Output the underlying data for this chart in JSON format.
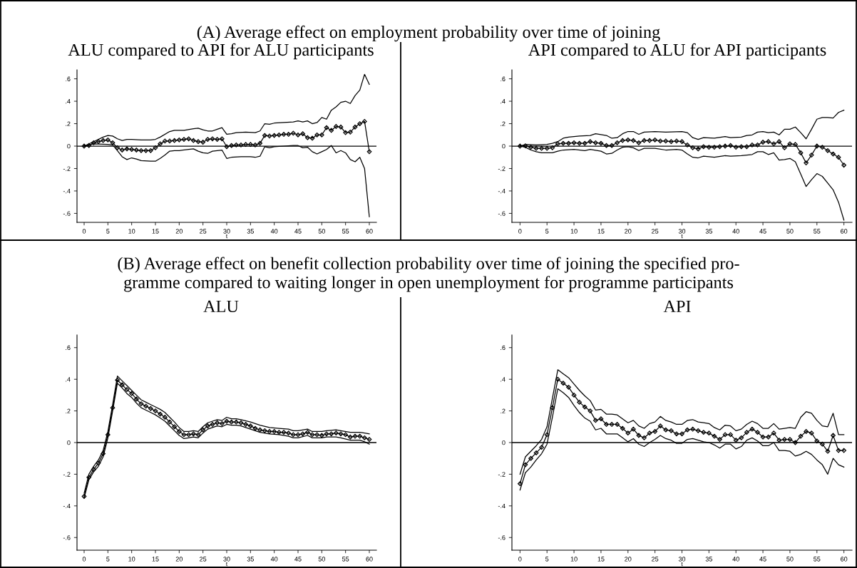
{
  "chart_data": [
    {
      "type": "line",
      "title": "ALU compared to API for ALU participants",
      "annotations": [
        "(A) Average effect on employment probability over time of joining"
      ],
      "xlabel": "t",
      "xlim": [
        -1.5,
        61.5
      ],
      "xticks": [
        0,
        5,
        10,
        15,
        20,
        25,
        30,
        35,
        40,
        45,
        50,
        55,
        60
      ],
      "ylim": [
        -0.68,
        0.68
      ],
      "yticks": [
        {
          "value": 0.6,
          "label": ".6"
        },
        {
          "value": 0.4,
          "label": ".4"
        },
        {
          "value": 0.2,
          "label": ".2"
        },
        0,
        {
          "value": -0.2,
          "label": "-.2"
        },
        {
          "value": -0.4,
          "label": "-.4"
        },
        {
          "value": -0.6,
          "label": "-.6"
        }
      ],
      "grid": false,
      "ref_lines": [
        {
          "axis": "y",
          "value": 0,
          "color": "#000000"
        }
      ],
      "series": [
        {
          "color": "#000000",
          "marker": "diamond",
          "x": [
            0,
            1,
            2,
            3,
            4,
            5,
            6,
            7,
            8,
            9,
            10,
            11,
            12,
            13,
            14,
            15,
            16,
            17,
            18,
            19,
            20,
            21,
            22,
            23,
            24,
            25,
            26,
            27,
            28,
            29,
            30,
            31,
            32,
            33,
            34,
            35,
            36,
            37,
            38,
            39,
            40,
            41,
            42,
            43,
            44,
            45,
            46,
            47,
            48,
            49,
            50,
            51,
            52,
            53,
            54,
            55,
            56,
            57,
            58,
            59,
            60
          ],
          "values": [
            0,
            0.005,
            0.03,
            0.04,
            0.05,
            0.055,
            0.03,
            -0.015,
            -0.035,
            -0.025,
            -0.03,
            -0.035,
            -0.04,
            -0.04,
            -0.04,
            -0.015,
            0.02,
            0.045,
            0.045,
            0.05,
            0.055,
            0.06,
            0.065,
            0.05,
            0.04,
            0.035,
            0.06,
            0.065,
            0.06,
            0.065,
            -0.005,
            0.005,
            0.01,
            0.01,
            0.015,
            0.015,
            0.01,
            0.025,
            0.095,
            0.09,
            0.095,
            0.1,
            0.105,
            0.105,
            0.115,
            0.1,
            0.11,
            0.075,
            0.07,
            0.1,
            0.1,
            0.165,
            0.14,
            0.175,
            0.17,
            0.12,
            0.125,
            0.17,
            0.2,
            0.22,
            -0.05
          ]
        },
        {
          "color": "#000000",
          "x": [
            0,
            2,
            4,
            5,
            6,
            7,
            8,
            9,
            10,
            12,
            14,
            15,
            16,
            18,
            19,
            21,
            23,
            24,
            25,
            26,
            27,
            28,
            29,
            30,
            31,
            32,
            34,
            36,
            37,
            38,
            39,
            40,
            42,
            44,
            45,
            46,
            47,
            48,
            49,
            50,
            51,
            52,
            53,
            54,
            55,
            56,
            57,
            58,
            59,
            60
          ],
          "values": [
            0,
            0.04,
            0.08,
            0.095,
            0.09,
            0.065,
            0.05,
            0.06,
            0.06,
            0.055,
            0.055,
            0.06,
            0.08,
            0.13,
            0.14,
            0.14,
            0.155,
            0.16,
            0.145,
            0.135,
            0.135,
            0.15,
            0.165,
            0.105,
            0.11,
            0.12,
            0.125,
            0.12,
            0.135,
            0.2,
            0.195,
            0.205,
            0.21,
            0.215,
            0.225,
            0.215,
            0.225,
            0.2,
            0.21,
            0.255,
            0.24,
            0.32,
            0.35,
            0.39,
            0.4,
            0.38,
            0.45,
            0.5,
            0.64,
            0.55
          ]
        },
        {
          "color": "#000000",
          "x": [
            0,
            2,
            5,
            6,
            7,
            8,
            9,
            10,
            11,
            12,
            14,
            15,
            16,
            17,
            18,
            19,
            20,
            22,
            23,
            24,
            25,
            26,
            27,
            28,
            29,
            30,
            31,
            33,
            35,
            36,
            37,
            38,
            39,
            40,
            42,
            44,
            45,
            46,
            47,
            48,
            49,
            50,
            51,
            52,
            53,
            54,
            55,
            56,
            57,
            58,
            59,
            60
          ],
          "values": [
            0,
            0.02,
            0.015,
            0.01,
            -0.04,
            -0.095,
            -0.12,
            -0.105,
            -0.115,
            -0.13,
            -0.135,
            -0.135,
            -0.11,
            -0.08,
            -0.045,
            -0.04,
            -0.04,
            -0.03,
            -0.025,
            -0.045,
            -0.06,
            -0.065,
            -0.045,
            -0.04,
            -0.035,
            -0.11,
            -0.1,
            -0.095,
            -0.095,
            -0.1,
            -0.09,
            -0.005,
            -0.015,
            -0.005,
            0,
            0.005,
            0.005,
            -0.015,
            -0.01,
            -0.05,
            -0.07,
            -0.05,
            -0.03,
            0.005,
            -0.06,
            -0.04,
            -0.06,
            -0.12,
            -0.14,
            -0.1,
            -0.2,
            -0.63
          ]
        }
      ]
    },
    {
      "type": "line",
      "title": "API compared to ALU for API participants",
      "xlabel": "t",
      "xlim": [
        -1.5,
        61.5
      ],
      "xticks": [
        0,
        5,
        10,
        15,
        20,
        25,
        30,
        35,
        40,
        45,
        50,
        55,
        60
      ],
      "ylim": [
        -0.68,
        0.68
      ],
      "yticks": [
        {
          "value": 0.6,
          "label": ".6"
        },
        {
          "value": 0.4,
          "label": ".4"
        },
        {
          "value": 0.2,
          "label": ".2"
        },
        0,
        {
          "value": -0.2,
          "label": "-.2"
        },
        {
          "value": -0.4,
          "label": "-.4"
        },
        {
          "value": -0.6,
          "label": "-.6"
        }
      ],
      "grid": false,
      "ref_lines": [
        {
          "axis": "y",
          "value": 0,
          "color": "#000000"
        }
      ],
      "series": [
        {
          "color": "#000000",
          "marker": "diamond",
          "x": [
            0,
            1,
            2,
            3,
            4,
            5,
            6,
            7,
            8,
            9,
            10,
            11,
            12,
            13,
            14,
            15,
            16,
            17,
            18,
            19,
            20,
            21,
            22,
            23,
            24,
            25,
            26,
            27,
            28,
            29,
            30,
            31,
            32,
            33,
            34,
            35,
            36,
            37,
            38,
            39,
            40,
            41,
            42,
            43,
            44,
            45,
            46,
            47,
            48,
            49,
            50,
            51,
            52,
            53,
            54,
            55,
            56,
            57,
            58,
            59,
            60
          ],
          "values": [
            0,
            0.002,
            -0.01,
            -0.02,
            -0.02,
            -0.02,
            -0.015,
            0.02,
            0.025,
            0.025,
            0.03,
            0.025,
            0.025,
            0.04,
            0.03,
            0.025,
            0.005,
            0.005,
            0.03,
            0.05,
            0.055,
            0.05,
            0.03,
            0.05,
            0.05,
            0.055,
            0.045,
            0.045,
            0.04,
            0.045,
            0.04,
            0.01,
            -0.015,
            -0.025,
            -0.005,
            -0.01,
            -0.01,
            -0.005,
            0,
            0.005,
            -0.01,
            -0.005,
            -0.005,
            0.01,
            0.01,
            0.035,
            0.04,
            0.02,
            0.04,
            -0.015,
            0.02,
            0.015,
            -0.06,
            -0.15,
            -0.08,
            0,
            -0.01,
            -0.04,
            -0.07,
            -0.1,
            -0.17
          ]
        },
        {
          "color": "#000000",
          "x": [
            0,
            1,
            3,
            5,
            6,
            7,
            8,
            9,
            11,
            13,
            14,
            16,
            17,
            18,
            19,
            20,
            21,
            22,
            23,
            25,
            27,
            30,
            31,
            32,
            33,
            34,
            36,
            38,
            39,
            41,
            42,
            43,
            44,
            45,
            46,
            47,
            48,
            49,
            50,
            51,
            52,
            53,
            54,
            55,
            56,
            57,
            58,
            59,
            60
          ],
          "values": [
            0,
            0.015,
            0.01,
            0.015,
            0.025,
            0.04,
            0.07,
            0.08,
            0.09,
            0.095,
            0.11,
            0.095,
            0.07,
            0.075,
            0.11,
            0.13,
            0.13,
            0.105,
            0.125,
            0.13,
            0.125,
            0.13,
            0.12,
            0.075,
            0.06,
            0.075,
            0.07,
            0.085,
            0.075,
            0.08,
            0.095,
            0.1,
            0.125,
            0.13,
            0.12,
            0.125,
            0.1,
            0.15,
            0.15,
            0.17,
            0.12,
            0.065,
            0.15,
            0.24,
            0.255,
            0.255,
            0.25,
            0.3,
            0.32
          ]
        },
        {
          "color": "#000000",
          "x": [
            0,
            1,
            2,
            3,
            4,
            6,
            7,
            8,
            10,
            12,
            13,
            15,
            16,
            17,
            18,
            19,
            20,
            21,
            22,
            23,
            25,
            27,
            29,
            30,
            31,
            32,
            33,
            34,
            36,
            38,
            39,
            41,
            43,
            44,
            45,
            46,
            47,
            48,
            49,
            50,
            51,
            52,
            53,
            54,
            55,
            56,
            57,
            58,
            59,
            60
          ],
          "values": [
            0,
            -0.01,
            -0.035,
            -0.05,
            -0.06,
            -0.06,
            -0.045,
            -0.035,
            -0.03,
            -0.04,
            -0.03,
            -0.045,
            -0.07,
            -0.065,
            -0.035,
            -0.01,
            -0.005,
            -0.015,
            -0.04,
            -0.02,
            -0.02,
            -0.035,
            -0.03,
            -0.035,
            -0.07,
            -0.1,
            -0.105,
            -0.09,
            -0.1,
            -0.085,
            -0.09,
            -0.085,
            -0.075,
            -0.05,
            -0.05,
            -0.075,
            -0.06,
            -0.125,
            -0.12,
            -0.11,
            -0.14,
            -0.25,
            -0.36,
            -0.3,
            -0.245,
            -0.27,
            -0.33,
            -0.39,
            -0.5,
            -0.66
          ]
        }
      ]
    },
    {
      "type": "line",
      "title": "ALU",
      "annotations": [
        "(B) Average effect on benefit collection probability over time of joining the specified pro-\ngramme compared to waiting longer in open unemployment for programme participants"
      ],
      "xlabel": "t",
      "xlim": [
        -1.5,
        61.5
      ],
      "xticks": [
        0,
        5,
        10,
        15,
        20,
        25,
        30,
        35,
        40,
        45,
        50,
        55,
        60
      ],
      "ylim": [
        -0.68,
        0.68
      ],
      "yticks": [
        {
          "value": 0.6,
          "label": ".6"
        },
        {
          "value": 0.4,
          "label": ".4"
        },
        {
          "value": 0.2,
          "label": ".2"
        },
        0,
        {
          "value": -0.2,
          "label": "-.2"
        },
        {
          "value": -0.4,
          "label": "-.4"
        },
        {
          "value": -0.6,
          "label": "-.6"
        }
      ],
      "grid": false,
      "ref_lines": [
        {
          "axis": "y",
          "value": 0,
          "color": "#000000"
        }
      ],
      "series": [
        {
          "color": "#000000",
          "marker": "diamond",
          "x": [
            0,
            1,
            2,
            3,
            4,
            5,
            6,
            7,
            8,
            9,
            10,
            11,
            12,
            13,
            14,
            15,
            16,
            17,
            18,
            19,
            20,
            21,
            22,
            23,
            24,
            25,
            26,
            27,
            28,
            29,
            30,
            31,
            32,
            33,
            34,
            35,
            36,
            37,
            38,
            39,
            40,
            41,
            42,
            43,
            44,
            45,
            46,
            47,
            48,
            49,
            50,
            51,
            52,
            53,
            54,
            55,
            56,
            57,
            58,
            59,
            60
          ],
          "values": [
            -0.34,
            -0.22,
            -0.17,
            -0.13,
            -0.07,
            0.05,
            0.22,
            0.395,
            0.365,
            0.335,
            0.31,
            0.275,
            0.245,
            0.23,
            0.215,
            0.2,
            0.18,
            0.16,
            0.13,
            0.1,
            0.07,
            0.05,
            0.05,
            0.055,
            0.05,
            0.08,
            0.105,
            0.115,
            0.125,
            0.12,
            0.135,
            0.13,
            0.13,
            0.125,
            0.115,
            0.105,
            0.09,
            0.08,
            0.075,
            0.07,
            0.07,
            0.065,
            0.065,
            0.06,
            0.05,
            0.05,
            0.055,
            0.065,
            0.05,
            0.05,
            0.045,
            0.055,
            0.055,
            0.06,
            0.055,
            0.05,
            0.035,
            0.04,
            0.04,
            0.03,
            0.02
          ]
        },
        {
          "color": "#000000",
          "x": [
            0,
            1,
            2,
            3,
            4,
            5,
            6,
            7,
            8,
            9,
            10,
            11,
            12,
            13,
            14,
            15,
            16,
            17,
            18,
            19,
            20,
            21,
            22,
            23,
            24,
            25,
            26,
            27,
            28,
            29,
            30,
            31,
            32,
            33,
            35,
            37,
            39,
            41,
            43,
            44,
            45,
            47,
            48,
            50,
            51,
            53,
            54,
            56,
            58,
            59,
            60
          ],
          "values": [
            -0.32,
            -0.2,
            -0.15,
            -0.11,
            -0.05,
            0.07,
            0.24,
            0.42,
            0.39,
            0.36,
            0.33,
            0.3,
            0.27,
            0.255,
            0.24,
            0.225,
            0.21,
            0.19,
            0.16,
            0.13,
            0.095,
            0.07,
            0.07,
            0.075,
            0.07,
            0.1,
            0.125,
            0.135,
            0.145,
            0.14,
            0.16,
            0.15,
            0.15,
            0.145,
            0.13,
            0.11,
            0.095,
            0.09,
            0.085,
            0.075,
            0.075,
            0.085,
            0.07,
            0.07,
            0.075,
            0.08,
            0.075,
            0.065,
            0.065,
            0.06,
            0.055
          ]
        },
        {
          "color": "#000000",
          "x": [
            0,
            1,
            2,
            3,
            4,
            5,
            6,
            7,
            8,
            9,
            10,
            11,
            12,
            13,
            14,
            15,
            16,
            17,
            18,
            19,
            20,
            21,
            22,
            23,
            24,
            25,
            26,
            27,
            28,
            29,
            30,
            31,
            32,
            33,
            35,
            37,
            39,
            41,
            43,
            44,
            45,
            47,
            48,
            50,
            51,
            53,
            54,
            56,
            58,
            59,
            60
          ],
          "values": [
            -0.35,
            -0.235,
            -0.185,
            -0.15,
            -0.09,
            0.03,
            0.2,
            0.375,
            0.345,
            0.31,
            0.285,
            0.25,
            0.22,
            0.205,
            0.19,
            0.175,
            0.155,
            0.135,
            0.105,
            0.075,
            0.045,
            0.025,
            0.03,
            0.035,
            0.03,
            0.06,
            0.085,
            0.095,
            0.105,
            0.1,
            0.115,
            0.11,
            0.11,
            0.105,
            0.085,
            0.065,
            0.055,
            0.05,
            0.04,
            0.03,
            0.03,
            0.045,
            0.03,
            0.03,
            0.035,
            0.035,
            0.03,
            0.015,
            0.015,
            0.005,
            -0.01
          ]
        }
      ]
    },
    {
      "type": "line",
      "title": "API",
      "xlabel": "t",
      "xlim": [
        -1.5,
        61.5
      ],
      "xticks": [
        0,
        5,
        10,
        15,
        20,
        25,
        30,
        35,
        40,
        45,
        50,
        55,
        60
      ],
      "ylim": [
        -0.68,
        0.68
      ],
      "yticks": [
        {
          "value": 0.6,
          "label": ".6"
        },
        {
          "value": 0.4,
          "label": ".4"
        },
        {
          "value": 0.2,
          "label": ".2"
        },
        0,
        {
          "value": -0.2,
          "label": "-.2"
        },
        {
          "value": -0.4,
          "label": "-.4"
        },
        {
          "value": -0.6,
          "label": "-.6"
        }
      ],
      "grid": false,
      "ref_lines": [
        {
          "axis": "y",
          "value": 0,
          "color": "#000000"
        }
      ],
      "series": [
        {
          "color": "#000000",
          "marker": "diamond",
          "x": [
            0,
            1,
            2,
            3,
            4,
            5,
            6,
            7,
            8,
            9,
            10,
            11,
            12,
            13,
            14,
            15,
            16,
            17,
            18,
            19,
            20,
            21,
            22,
            23,
            24,
            25,
            26,
            27,
            28,
            29,
            30,
            31,
            32,
            33,
            34,
            35,
            36,
            37,
            38,
            39,
            40,
            41,
            42,
            43,
            44,
            45,
            46,
            47,
            48,
            49,
            50,
            51,
            52,
            53,
            54,
            55,
            56,
            57,
            58,
            59,
            60
          ],
          "values": [
            -0.26,
            -0.14,
            -0.1,
            -0.065,
            -0.03,
            0.05,
            0.22,
            0.4,
            0.375,
            0.35,
            0.3,
            0.255,
            0.225,
            0.2,
            0.14,
            0.15,
            0.115,
            0.115,
            0.115,
            0.09,
            0.06,
            0.085,
            0.045,
            0.03,
            0.06,
            0.07,
            0.105,
            0.08,
            0.075,
            0.055,
            0.055,
            0.08,
            0.085,
            0.075,
            0.065,
            0.06,
            0.04,
            0.02,
            0.05,
            0.05,
            0.015,
            0.03,
            0.065,
            0.085,
            0.065,
            0.035,
            0.035,
            0.06,
            0.015,
            0.02,
            0.02,
            0,
            0.04,
            0.07,
            0.06,
            0.01,
            -0.01,
            -0.055,
            0.045,
            -0.05,
            -0.05
          ]
        },
        {
          "color": "#000000",
          "x": [
            0,
            1,
            2,
            3,
            4,
            5,
            6,
            7,
            8,
            9,
            10,
            11,
            12,
            13,
            14,
            15,
            16,
            17,
            18,
            19,
            20,
            21,
            22,
            23,
            24,
            25,
            26,
            27,
            28,
            29,
            30,
            31,
            32,
            33,
            34,
            35,
            36,
            37,
            38,
            39,
            40,
            41,
            42,
            43,
            44,
            45,
            46,
            47,
            48,
            49,
            50,
            51,
            52,
            53,
            54,
            55,
            56,
            57,
            58,
            59,
            60
          ],
          "values": [
            -0.2,
            -0.09,
            -0.055,
            -0.02,
            0.02,
            0.1,
            0.28,
            0.46,
            0.435,
            0.41,
            0.37,
            0.33,
            0.295,
            0.265,
            0.205,
            0.21,
            0.18,
            0.18,
            0.175,
            0.15,
            0.125,
            0.14,
            0.105,
            0.09,
            0.12,
            0.13,
            0.165,
            0.14,
            0.13,
            0.115,
            0.115,
            0.14,
            0.145,
            0.13,
            0.125,
            0.12,
            0.095,
            0.08,
            0.11,
            0.105,
            0.075,
            0.085,
            0.115,
            0.135,
            0.12,
            0.09,
            0.09,
            0.12,
            0.085,
            0.09,
            0.095,
            0.09,
            0.16,
            0.195,
            0.185,
            0.14,
            0.105,
            0.1,
            0.185,
            0.05,
            0.05
          ]
        },
        {
          "color": "#000000",
          "x": [
            0,
            1,
            2,
            3,
            4,
            5,
            6,
            7,
            8,
            9,
            10,
            11,
            12,
            13,
            14,
            15,
            16,
            17,
            18,
            19,
            20,
            21,
            22,
            23,
            24,
            25,
            26,
            27,
            28,
            29,
            30,
            31,
            32,
            33,
            34,
            35,
            36,
            37,
            38,
            39,
            40,
            41,
            42,
            43,
            44,
            45,
            46,
            47,
            48,
            49,
            50,
            51,
            52,
            53,
            54,
            55,
            56,
            57,
            58,
            59,
            60
          ],
          "values": [
            -0.3,
            -0.19,
            -0.155,
            -0.11,
            -0.07,
            -0.01,
            0.16,
            0.34,
            0.315,
            0.285,
            0.235,
            0.19,
            0.155,
            0.135,
            0.08,
            0.09,
            0.055,
            0.055,
            0.055,
            0.03,
            0.005,
            0.025,
            -0.01,
            -0.025,
            0,
            0.02,
            0.045,
            0.025,
            0.015,
            -0.005,
            -0.005,
            0.02,
            0.025,
            0.015,
            0.005,
            0,
            -0.015,
            -0.035,
            -0.01,
            -0.01,
            -0.04,
            -0.025,
            0.015,
            0.03,
            0.01,
            -0.02,
            -0.02,
            0,
            -0.05,
            -0.05,
            -0.055,
            -0.085,
            -0.075,
            -0.055,
            -0.075,
            -0.11,
            -0.14,
            -0.2,
            -0.1,
            -0.14,
            -0.155
          ]
        }
      ]
    }
  ]
}
